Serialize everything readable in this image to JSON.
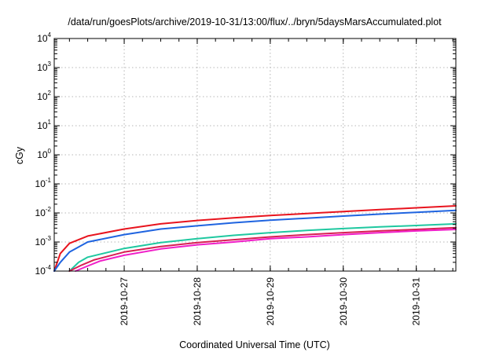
{
  "chart_data": {
    "type": "line",
    "title": "/data/run/goesPlots/archive/2019-10-31/13:00/flux/../bryn/5daysMarsAccumulated.plot",
    "xlabel": "Coordinated Universal Time (UTC)",
    "ylabel": "cGy",
    "x_scale": "time",
    "y_scale": "log",
    "xlim": [
      "2019-10-26T01:00",
      "2019-10-31T13:00"
    ],
    "ylim": [
      0.0001,
      10000
    ],
    "x_ticks": [
      "2019-10-27",
      "2019-10-28",
      "2019-10-29",
      "2019-10-30",
      "2019-10-31"
    ],
    "y_ticks": [
      {
        "base": "10",
        "exp": "-4"
      },
      {
        "base": "10",
        "exp": "-3"
      },
      {
        "base": "10",
        "exp": "-2"
      },
      {
        "base": "10",
        "exp": "-1"
      },
      {
        "base": "10",
        "exp": "0"
      },
      {
        "base": "10",
        "exp": "1"
      },
      {
        "base": "10",
        "exp": "2"
      },
      {
        "base": "10",
        "exp": "3"
      },
      {
        "base": "10",
        "exp": "4"
      }
    ],
    "grid": true,
    "series": [
      {
        "color": "#e8141e",
        "x": [
          "2019-10-26T01:00",
          "2019-10-26T03:00",
          "2019-10-26T06:00",
          "2019-10-26T12:00",
          "2019-10-27T00:00",
          "2019-10-27T12:00",
          "2019-10-28T00:00",
          "2019-10-28T12:00",
          "2019-10-29T00:00",
          "2019-10-29T12:00",
          "2019-10-30T00:00",
          "2019-10-30T12:00",
          "2019-10-31T00:00",
          "2019-10-31T13:00"
        ],
        "y": [
          0.0001,
          0.0004,
          0.0009,
          0.0016,
          0.0028,
          0.0042,
          0.0055,
          0.0068,
          0.0082,
          0.0095,
          0.0112,
          0.013,
          0.015,
          0.0175
        ]
      },
      {
        "color": "#1f64e0",
        "x": [
          "2019-10-26T01:00",
          "2019-10-26T03:00",
          "2019-10-26T06:00",
          "2019-10-26T12:00",
          "2019-10-27T00:00",
          "2019-10-27T12:00",
          "2019-10-28T00:00",
          "2019-10-28T12:00",
          "2019-10-29T00:00",
          "2019-10-29T12:00",
          "2019-10-30T00:00",
          "2019-10-30T12:00",
          "2019-10-31T00:00",
          "2019-10-31T13:00"
        ],
        "y": [
          0.0001,
          0.0002,
          0.00045,
          0.001,
          0.0018,
          0.0028,
          0.0036,
          0.0046,
          0.0056,
          0.0066,
          0.0078,
          0.0091,
          0.0105,
          0.0122
        ]
      },
      {
        "color": "#1fc8a0",
        "x": [
          "2019-10-26T06:00",
          "2019-10-26T09:00",
          "2019-10-26T12:00",
          "2019-10-27T00:00",
          "2019-10-27T12:00",
          "2019-10-28T00:00",
          "2019-10-28T12:00",
          "2019-10-29T00:00",
          "2019-10-29T12:00",
          "2019-10-30T00:00",
          "2019-10-30T12:00",
          "2019-10-31T00:00",
          "2019-10-31T13:00"
        ],
        "y": [
          0.0001,
          0.0002,
          0.0003,
          0.0006,
          0.00095,
          0.0013,
          0.0017,
          0.0021,
          0.0025,
          0.0029,
          0.0033,
          0.0037,
          0.0042
        ]
      },
      {
        "color": "#d81f52",
        "x": [
          "2019-10-26T06:00",
          "2019-10-26T10:00",
          "2019-10-26T14:00",
          "2019-10-27T00:00",
          "2019-10-27T12:00",
          "2019-10-28T00:00",
          "2019-10-28T12:00",
          "2019-10-29T00:00",
          "2019-10-29T12:00",
          "2019-10-30T00:00",
          "2019-10-30T12:00",
          "2019-10-31T00:00",
          "2019-10-31T13:00"
        ],
        "y": [
          0.0001,
          0.00016,
          0.00024,
          0.00045,
          0.0007,
          0.00095,
          0.0012,
          0.0015,
          0.0018,
          0.0021,
          0.0024,
          0.0027,
          0.0031
        ]
      },
      {
        "color": "#f01ec8",
        "x": [
          "2019-10-26T08:00",
          "2019-10-26T12:00",
          "2019-10-26T16:00",
          "2019-10-27T00:00",
          "2019-10-27T12:00",
          "2019-10-28T00:00",
          "2019-10-28T12:00",
          "2019-10-29T00:00",
          "2019-10-29T12:00",
          "2019-10-30T00:00",
          "2019-10-30T12:00",
          "2019-10-31T00:00",
          "2019-10-31T13:00"
        ],
        "y": [
          0.0001,
          0.00015,
          0.00022,
          0.00035,
          0.00058,
          0.0008,
          0.001,
          0.0013,
          0.0015,
          0.0018,
          0.0021,
          0.0024,
          0.0027
        ]
      }
    ]
  }
}
